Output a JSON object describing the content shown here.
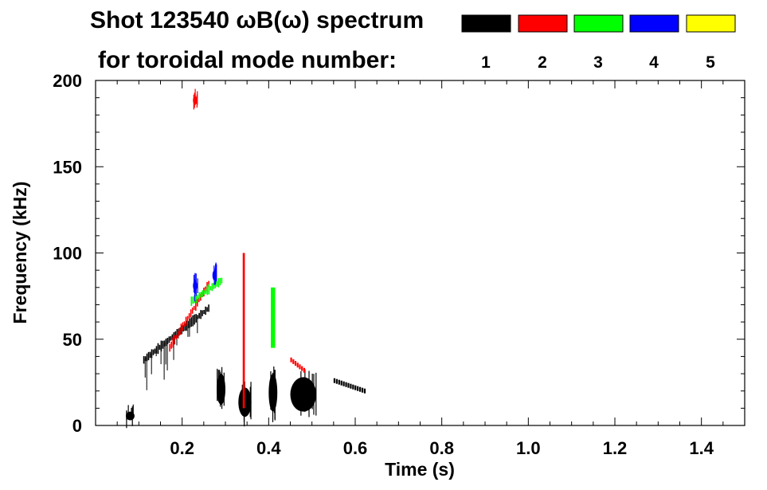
{
  "chart_data": {
    "type": "heatmap",
    "title_line1": "Shot 123540 ωB(ω) spectrum",
    "title_line2": "for toroidal mode number:",
    "xlabel": "Time (s)",
    "ylabel": "Frequency (kHz)",
    "xlim": [
      0.0,
      1.5
    ],
    "ylim": [
      0,
      200
    ],
    "x_ticks": [
      0.2,
      0.4,
      0.6,
      0.8,
      1.0,
      1.2,
      1.4
    ],
    "x_tick_labels": [
      "0.2",
      "0.4",
      "0.6",
      "0.8",
      "1.0",
      "1.2",
      "1.4"
    ],
    "y_ticks": [
      0,
      50,
      100,
      150,
      200
    ],
    "y_tick_labels": [
      "0",
      "50",
      "100",
      "150",
      "200"
    ],
    "legend": [
      {
        "mode": "1",
        "color": "#000000"
      },
      {
        "mode": "2",
        "color": "#ff0000"
      },
      {
        "mode": "3",
        "color": "#00ff00"
      },
      {
        "mode": "4",
        "color": "#0000ff"
      },
      {
        "mode": "5",
        "color": "#ffff00"
      }
    ],
    "features": [
      {
        "mode": "1",
        "kind": "chirp",
        "t": [
          0.11,
          0.26
        ],
        "f": [
          38,
          68
        ]
      },
      {
        "mode": "1",
        "kind": "blob",
        "t": [
          0.07,
          0.09
        ],
        "f": [
          3,
          8
        ]
      },
      {
        "mode": "1",
        "kind": "blob",
        "t": [
          0.28,
          0.3
        ],
        "f": [
          12,
          30
        ]
      },
      {
        "mode": "1",
        "kind": "blob",
        "t": [
          0.33,
          0.36
        ],
        "f": [
          5,
          22
        ]
      },
      {
        "mode": "1",
        "kind": "blob",
        "t": [
          0.4,
          0.42
        ],
        "f": [
          8,
          30
        ]
      },
      {
        "mode": "1",
        "kind": "blob",
        "t": [
          0.45,
          0.51
        ],
        "f": [
          8,
          28
        ]
      },
      {
        "mode": "1",
        "kind": "band",
        "t": [
          0.55,
          0.62
        ],
        "f": [
          20,
          26
        ]
      },
      {
        "mode": "2",
        "kind": "chirp",
        "t": [
          0.17,
          0.26
        ],
        "f": [
          45,
          82
        ]
      },
      {
        "mode": "2",
        "kind": "blob",
        "t": [
          0.225,
          0.235
        ],
        "f": [
          186,
          191
        ]
      },
      {
        "mode": "2",
        "kind": "band",
        "t": [
          0.45,
          0.48
        ],
        "f": [
          32,
          38
        ]
      },
      {
        "mode": "2",
        "kind": "spike",
        "t": [
          0.34,
          0.345
        ],
        "f": [
          10,
          100
        ]
      },
      {
        "mode": "3",
        "kind": "chirp",
        "t": [
          0.22,
          0.29
        ],
        "f": [
          72,
          84
        ]
      },
      {
        "mode": "3",
        "kind": "spike",
        "t": [
          0.405,
          0.415
        ],
        "f": [
          45,
          80
        ]
      },
      {
        "mode": "4",
        "kind": "blob",
        "t": [
          0.225,
          0.235
        ],
        "f": [
          78,
          84
        ]
      },
      {
        "mode": "4",
        "kind": "blob",
        "t": [
          0.27,
          0.28
        ],
        "f": [
          84,
          90
        ]
      }
    ]
  }
}
